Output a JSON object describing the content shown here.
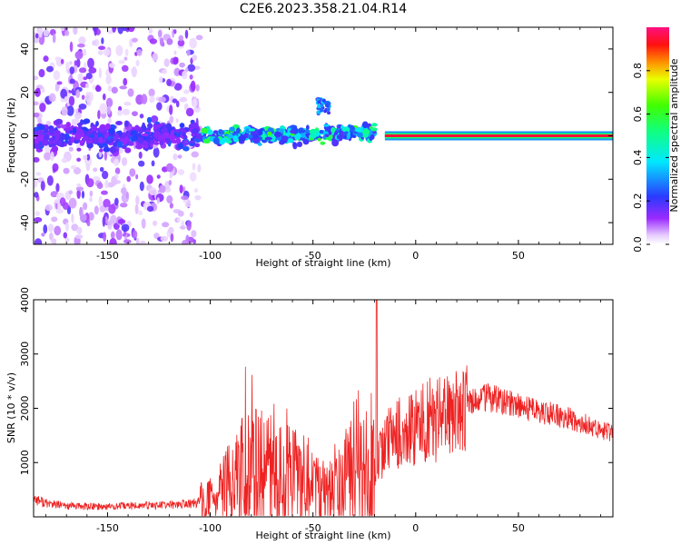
{
  "title": "C2E6.2023.358.21.04.R14",
  "chart_data": [
    {
      "type": "heatmap",
      "xlabel": "Height of straight line (km)",
      "ylabel": "Frequency (Hz)",
      "xlim": [
        -186,
        96
      ],
      "ylim": [
        -50,
        50
      ],
      "xticks": [
        "-150",
        "-100",
        "-50",
        "0",
        "50"
      ],
      "yticks": [
        "-40",
        "-20",
        "0",
        "20",
        "40"
      ],
      "grid": false,
      "colorbar": {
        "label": "Normalized spectral amplitude",
        "range": [
          0,
          1
        ],
        "ticks": [
          "0.0",
          "0.2",
          "0.4",
          "0.6",
          "0.8"
        ]
      },
      "features": [
        {
          "desc": "broadband scatter",
          "x_range": [
            -186,
            -105
          ],
          "freq_range": [
            -50,
            50
          ],
          "amplitude": 0.1
        },
        {
          "desc": "noisy band",
          "x_range": [
            -105,
            -20
          ],
          "freq_range": [
            -5,
            8
          ],
          "amplitude": 0.45
        },
        {
          "desc": "burst",
          "x": -45,
          "freq_range": [
            10,
            17
          ],
          "amplitude": 0.3
        },
        {
          "desc": "strong narrow line",
          "x_range": [
            -15,
            96
          ],
          "freq": 0,
          "amplitude": 0.95
        }
      ]
    },
    {
      "type": "line",
      "xlabel": "Height of straight line (km)",
      "ylabel": "SNR (10 * v/v)",
      "xlim": [
        -186,
        96
      ],
      "ylim": [
        0,
        4000
      ],
      "xticks": [
        "-150",
        "-100",
        "-50",
        "0",
        "50"
      ],
      "yticks": [
        "1000",
        "2000",
        "3000",
        "4000"
      ],
      "grid": false,
      "series": [
        {
          "color": "#ee2222",
          "x": [
            -186,
            -180,
            -170,
            -160,
            -150,
            -140,
            -130,
            -120,
            -110,
            -100,
            -95,
            -90,
            -85,
            -80,
            -75,
            -70,
            -65,
            -60,
            -55,
            -50,
            -45,
            -40,
            -35,
            -30,
            -25,
            -20,
            -17,
            -15,
            -10,
            -5,
            0,
            5,
            10,
            15,
            20,
            25,
            30,
            35,
            40,
            50,
            60,
            70,
            80,
            90,
            96
          ],
          "y": [
            350,
            250,
            200,
            190,
            190,
            200,
            210,
            220,
            240,
            300,
            420,
            600,
            750,
            900,
            850,
            800,
            750,
            700,
            650,
            500,
            400,
            450,
            650,
            800,
            850,
            950,
            1200,
            1400,
            1500,
            1650,
            1700,
            1750,
            1800,
            1850,
            1900,
            2050,
            2150,
            2200,
            2150,
            2050,
            1950,
            1850,
            1750,
            1600,
            1550
          ]
        }
      ]
    }
  ]
}
